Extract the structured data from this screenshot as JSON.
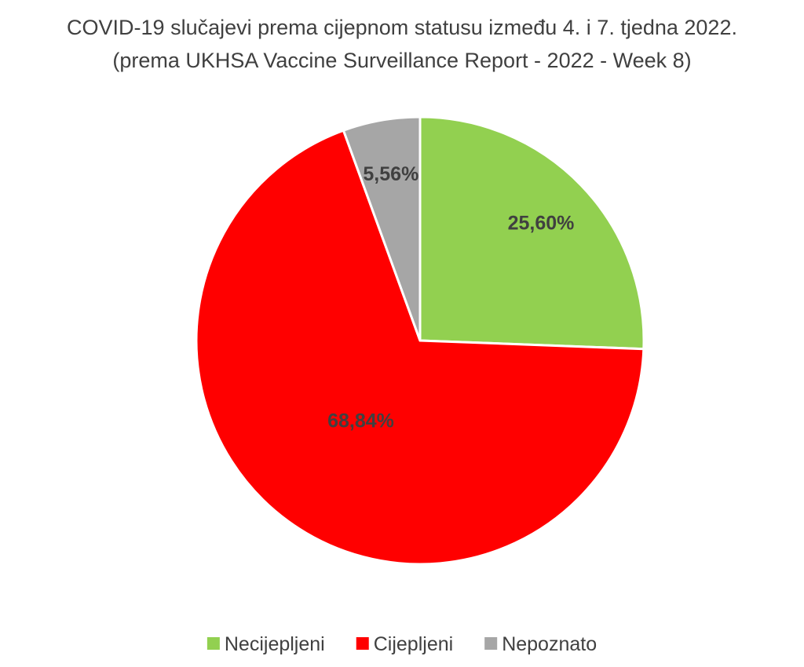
{
  "chart_data": {
    "type": "pie",
    "title": "COVID-19 slučajevi prema cijepnom statusu između 4. i 7. tjedna 2022.",
    "subtitle": "(prema UKHSA Vaccine Surveillance Report - 2022 - Week 8)",
    "categories": [
      "Necijepljeni",
      "Cijepljeni",
      "Nepoznato"
    ],
    "values": [
      25.6,
      68.84,
      5.56
    ],
    "value_labels": [
      "25,60%",
      "68,84%",
      "5,56%"
    ],
    "colors": [
      "#92d050",
      "#ff0000",
      "#a6a6a6"
    ],
    "legend": "bottom"
  }
}
